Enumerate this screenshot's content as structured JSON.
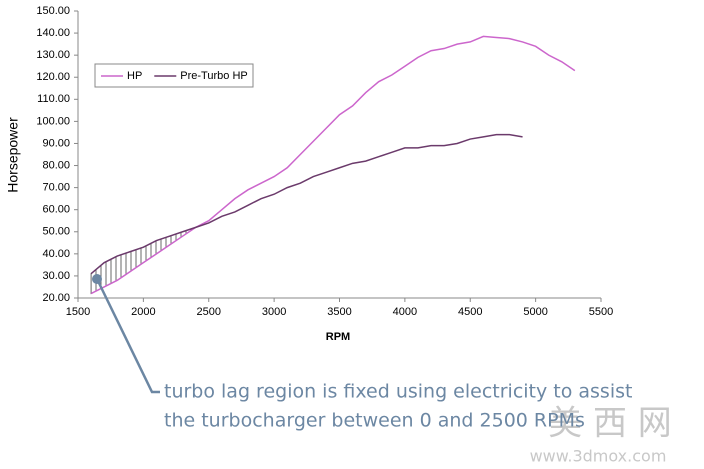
{
  "chart_data": {
    "type": "line",
    "xlabel": "RPM",
    "ylabel": "Horsepower",
    "xlim": [
      1500,
      5500
    ],
    "xticks": [
      1500,
      2000,
      2500,
      3000,
      3500,
      4000,
      4500,
      5000,
      5500
    ],
    "ylim": [
      20,
      150
    ],
    "yticks": [
      {
        "value": 20,
        "label": "20.00"
      },
      {
        "value": 30,
        "label": "30.00"
      },
      {
        "value": 40,
        "label": "40.00"
      },
      {
        "value": 50,
        "label": "50.00"
      },
      {
        "value": 60,
        "label": "60.00"
      },
      {
        "value": 70,
        "label": "70.00"
      },
      {
        "value": 80,
        "label": "80.00"
      },
      {
        "value": 90,
        "label": "90.00"
      },
      {
        "value": 100,
        "label": "100.00"
      },
      {
        "value": 110,
        "label": "110.00"
      },
      {
        "value": 120,
        "label": "120.00"
      },
      {
        "value": 130,
        "label": "130.00"
      },
      {
        "value": 140,
        "label": "140.00"
      },
      {
        "value": 150,
        "label": "150.00"
      }
    ],
    "grid": false,
    "legend": "upper left",
    "series": [
      {
        "name": "HP",
        "color": "#cc66cc",
        "x": [
          1600,
          1700,
          1800,
          1900,
          2000,
          2100,
          2200,
          2300,
          2400,
          2500,
          2600,
          2700,
          2800,
          2900,
          3000,
          3100,
          3200,
          3300,
          3400,
          3500,
          3600,
          3700,
          3800,
          3900,
          4000,
          4100,
          4200,
          4300,
          4400,
          4500,
          4600,
          4700,
          4800,
          4900,
          5000,
          5100,
          5200,
          5300
        ],
        "values": [
          22,
          25,
          28,
          32,
          36,
          40,
          44,
          48,
          52,
          55,
          60,
          65,
          69,
          72,
          75,
          79,
          85,
          91,
          97,
          103,
          107,
          113,
          118,
          121,
          125,
          129,
          132,
          133,
          135,
          136,
          138.5,
          138,
          137.5,
          136,
          134,
          130,
          127,
          123
        ]
      },
      {
        "name": "Pre-Turbo HP",
        "color": "#6b3a6b",
        "x": [
          1600,
          1700,
          1800,
          1900,
          2000,
          2100,
          2200,
          2300,
          2400,
          2500,
          2600,
          2700,
          2800,
          2900,
          3000,
          3100,
          3200,
          3300,
          3400,
          3500,
          3600,
          3700,
          3800,
          3900,
          4000,
          4100,
          4200,
          4300,
          4400,
          4500,
          4600,
          4700,
          4800,
          4900
        ],
        "values": [
          31,
          36,
          39,
          41,
          43,
          46,
          48,
          50,
          52,
          54,
          57,
          59,
          62,
          65,
          67,
          70,
          72,
          75,
          77,
          79,
          81,
          82,
          84,
          86,
          88,
          88,
          89,
          89,
          90,
          92,
          93,
          94,
          94,
          93
        ]
      }
    ],
    "annotation": [
      "turbo lag region is fixed using electricity to assist",
      "the turbocharger  between 0 and 2500 RPMs"
    ],
    "watermark": [
      "美 西 网",
      "www.3dmox.com"
    ]
  }
}
